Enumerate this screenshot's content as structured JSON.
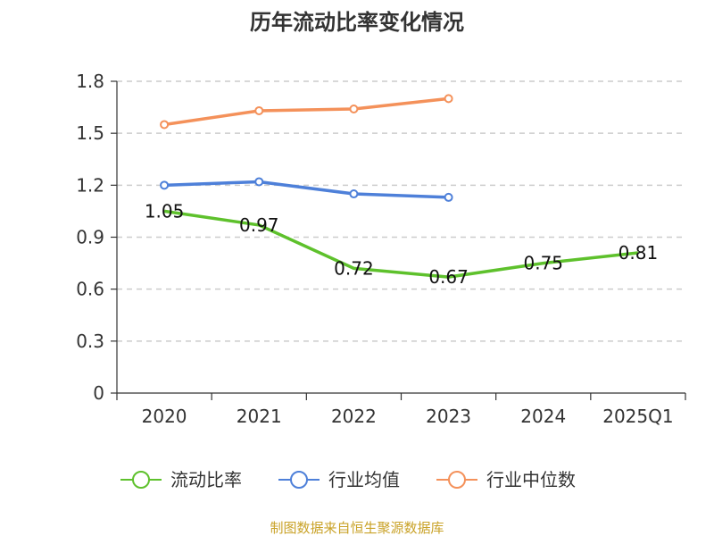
{
  "chart_data": {
    "type": "line",
    "title": "历年流动比率变化情况",
    "categories": [
      "2020",
      "2021",
      "2022",
      "2023",
      "2024",
      "2025Q1"
    ],
    "yticks": [
      "0",
      "0.3",
      "0.6",
      "0.9",
      "1.2",
      "1.5",
      "1.8"
    ],
    "ylim": [
      0,
      1.8
    ],
    "grid": true,
    "series": [
      {
        "name": "流动比率",
        "color": "#5ec12c",
        "values": [
          1.05,
          0.97,
          0.72,
          0.67,
          0.75,
          0.81
        ],
        "labels": [
          "1.05",
          "0.97",
          "0.72",
          "0.67",
          "0.75",
          "0.81"
        ]
      },
      {
        "name": "行业均值",
        "color": "#4e80d9",
        "values": [
          1.2,
          1.22,
          1.15,
          1.13,
          null,
          null
        ]
      },
      {
        "name": "行业中位数",
        "color": "#f4915a",
        "values": [
          1.55,
          1.63,
          1.64,
          1.7,
          null,
          null
        ]
      }
    ],
    "legend_position": "bottom",
    "source": "制图数据来自恒生聚源数据库"
  }
}
